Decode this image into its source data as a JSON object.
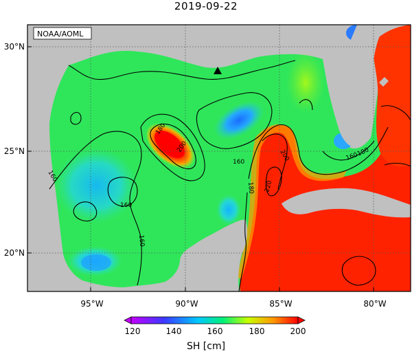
{
  "title": "2019-09-22",
  "credit": "NOAA/AOML",
  "lat_labels": [
    "30°N",
    "25°N",
    "20°N"
  ],
  "lon_labels": [
    "95°W",
    "90°W",
    "85°W",
    "80°W"
  ],
  "contour_labels": [
    "180",
    "200",
    "160",
    "160",
    "160",
    "160",
    "200",
    "220",
    "180",
    "160",
    "180"
  ],
  "colorbar": {
    "ticks": [
      "120",
      "140",
      "160",
      "180",
      "200"
    ],
    "label": "SH [cm]",
    "colors": [
      "#c300ff",
      "#3a3aff",
      "#00c8ff",
      "#00f07a",
      "#c8ff00",
      "#ff9900",
      "#ff0000"
    ]
  },
  "colors": {
    "land": "#c0c0c0",
    "frame": "#000000",
    "gulf_mean": "#2fe65a",
    "warm": "#ff2200"
  },
  "marker": "triangle-station"
}
